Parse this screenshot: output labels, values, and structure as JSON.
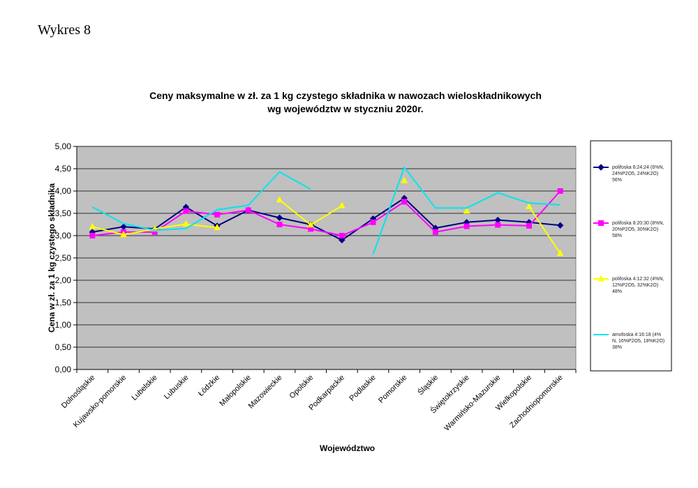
{
  "page_label": "Wykres 8",
  "chart_data": {
    "type": "line",
    "title_lines": [
      "Ceny maksymalne  w zł. za 1 kg czystego składnika w nawozach wieloskładnikowych",
      "wg województw w styczniu 2020r."
    ],
    "xlabel": "Województwo",
    "ylabel": "Cena w zł. za 1 kg czystego składnika",
    "ylim": [
      0,
      5
    ],
    "yticks": [
      "0,00",
      "0,50",
      "1,00",
      "1,50",
      "2,00",
      "2,50",
      "3,00",
      "3,50",
      "4,00",
      "4,50",
      "5,00"
    ],
    "grid": true,
    "plot_background": "#c0c0c0",
    "legend_position": "right",
    "categories": [
      "Dolnośląskie",
      "Kujawsko-pomorskie",
      "Lubelskie",
      "Lubuskie",
      "Łódzkie",
      "Małopolskie",
      "Mazowieckie",
      "Opolskie",
      "Podkarpackie",
      "Podlaskie",
      "Pomorskie",
      "Śląskie",
      "Świętokrzyskie",
      "Warmińsko-Mazurskie",
      "Wielkopolskie",
      "Zachodniopomorskie"
    ],
    "series": [
      {
        "name_lines": [
          "polifoska 6:24:24 (6%N,",
          "24%P2O5, 24%K2O)",
          "56%"
        ],
        "color": "#000080",
        "marker": "diamond",
        "values": [
          3.08,
          3.2,
          3.15,
          3.64,
          3.22,
          3.57,
          3.4,
          3.25,
          2.9,
          3.38,
          3.84,
          3.17,
          3.3,
          3.35,
          3.3,
          3.23
        ]
      },
      {
        "name_lines": [
          "polifoska 8:20:30 (8%N,",
          "20%P2O5, 30%K2O)",
          "58%"
        ],
        "color": "#ff00ff",
        "marker": "square",
        "values": [
          3.0,
          3.08,
          3.08,
          3.55,
          3.47,
          3.57,
          3.25,
          3.15,
          3.0,
          3.3,
          3.76,
          3.08,
          3.21,
          3.24,
          3.22,
          4.0
        ]
      },
      {
        "name_lines": [
          "polifoska 4:12:32 (4%N,",
          "12%P2O5, 32%K2O)",
          "48%"
        ],
        "color": "#ffff00",
        "marker": "triangle",
        "values": [
          3.2,
          3.02,
          3.15,
          3.26,
          3.18,
          null,
          3.8,
          3.24,
          3.67,
          null,
          4.23,
          null,
          3.55,
          null,
          3.65,
          2.6
        ]
      },
      {
        "name_lines": [
          "amofoska 4:16:18 (4%",
          "N, 16%P2O5, 18%K2O)",
          "38%"
        ],
        "color": "#00e5ee",
        "marker": "none",
        "values": [
          3.64,
          3.27,
          3.12,
          3.16,
          3.58,
          3.68,
          4.43,
          4.04,
          null,
          2.58,
          4.53,
          3.62,
          3.62,
          3.96,
          3.73,
          3.69
        ]
      }
    ]
  }
}
